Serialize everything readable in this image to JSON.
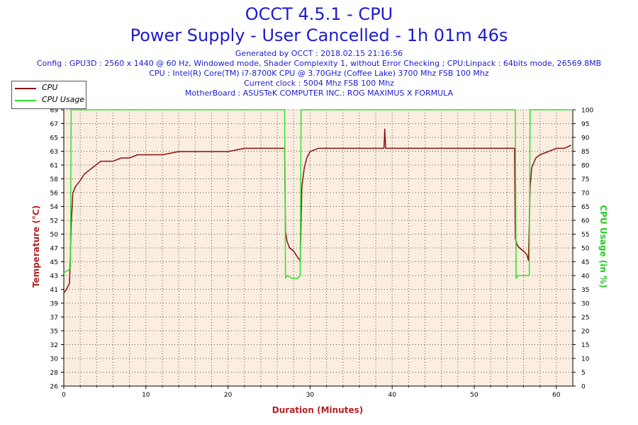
{
  "header": {
    "title_line1": "OCCT 4.5.1 - CPU",
    "title_line2": "Power Supply - User Cancelled - 1h 01m 46s",
    "generated": "Generated by OCCT : 2018.02.15 21:16:56",
    "config": "Config : GPU3D : 2560 x 1440 @ 60 Hz, Windowed mode, Shader Complexity 1, without Error Checking ; CPU:Linpack : 64bits mode, 26569.8MB",
    "cpu": "CPU : Intel(R) Core(TM) i7-8700K CPU @ 3.70GHz (Coffee Lake) 3700 Mhz FSB 100 Mhz",
    "clock": "Current clock : 5004 Mhz FSB 100 Mhz",
    "motherboard": "MotherBoard : ASUSTeK COMPUTER INC.: ROG MAXIMUS X FORMULA"
  },
  "legend": {
    "cpu_label": "CPU",
    "usage_label": "CPU Usage"
  },
  "colors": {
    "cpu": "#8b1010",
    "usage": "#2ee02e",
    "plot_bg": "#fbeee0",
    "title": "#1c1ccd",
    "axis_title_left": "#b42222",
    "axis_title_right": "#22cc22",
    "axis_title_bottom": "#b42222"
  },
  "chart_data": {
    "type": "line",
    "xlabel": "Duration (Minutes)",
    "ylabel": "Temperature (°C)",
    "y2label": "CPU Usage (in %)",
    "xlim": [
      0,
      62
    ],
    "ylim": [
      26,
      69
    ],
    "y2lim": [
      0,
      100
    ],
    "x_ticks": [
      0,
      10,
      20,
      30,
      40,
      50,
      60
    ],
    "y_ticks": [
      26,
      28,
      30,
      32,
      35,
      37,
      39,
      41,
      43,
      45,
      47,
      50,
      52,
      54,
      56,
      58,
      61,
      63,
      65,
      67,
      69
    ],
    "y2_ticks": [
      0,
      5,
      10,
      15,
      20,
      25,
      30,
      35,
      40,
      45,
      50,
      55,
      60,
      65,
      70,
      75,
      80,
      85,
      90,
      95,
      100
    ],
    "grid": true,
    "series": [
      {
        "name": "CPU",
        "axis": "left",
        "x": [
          0.0,
          0.3,
          0.7,
          0.9,
          1.1,
          1.4,
          2.0,
          2.5,
          3.0,
          3.5,
          4.0,
          4.5,
          5.0,
          6.0,
          7.0,
          8.0,
          9.0,
          10.0,
          12.0,
          14.0,
          16.0,
          18.0,
          20.0,
          22.0,
          24.0,
          26.0,
          26.9,
          27.0,
          27.2,
          27.5,
          28.0,
          28.5,
          28.8,
          29.0,
          29.3,
          29.6,
          30.0,
          31.0,
          33.0,
          36.0,
          39.0,
          39.1,
          39.2,
          42.0,
          45.0,
          48.0,
          51.0,
          54.0,
          54.9,
          55.0,
          55.2,
          55.5,
          56.0,
          56.4,
          56.6,
          56.8,
          57.0,
          57.5,
          58.0,
          59.0,
          60.0,
          61.0,
          61.8
        ],
        "values": [
          40.5,
          41,
          42,
          51,
          56,
          57,
          58,
          59,
          59.5,
          60,
          60.5,
          61,
          61,
          61,
          61.5,
          61.5,
          62,
          62,
          62,
          62.5,
          62.5,
          62.5,
          62.5,
          63,
          63,
          63,
          63,
          50,
          48.5,
          47.5,
          47,
          46,
          45.5,
          57,
          60,
          61.5,
          62.5,
          63,
          63,
          63,
          63,
          66,
          63,
          63,
          63,
          63,
          63,
          63,
          63,
          49,
          48,
          47.5,
          47,
          46.5,
          45.5,
          57,
          60,
          61.5,
          62,
          62.5,
          63,
          63,
          63.5
        ]
      },
      {
        "name": "CPU Usage",
        "axis": "right",
        "x": [
          0.0,
          0.6,
          0.8,
          0.9,
          1.0,
          26.9,
          27.0,
          27.2,
          27.8,
          28.5,
          28.8,
          28.9,
          55.0,
          55.1,
          55.3,
          56.0,
          56.5,
          56.7,
          56.8,
          61.8
        ],
        "values": [
          41,
          42,
          43,
          100,
          100,
          100,
          39,
          40,
          39,
          39,
          40,
          100,
          100,
          39,
          40,
          40,
          40,
          40,
          100,
          100
        ]
      }
    ]
  }
}
